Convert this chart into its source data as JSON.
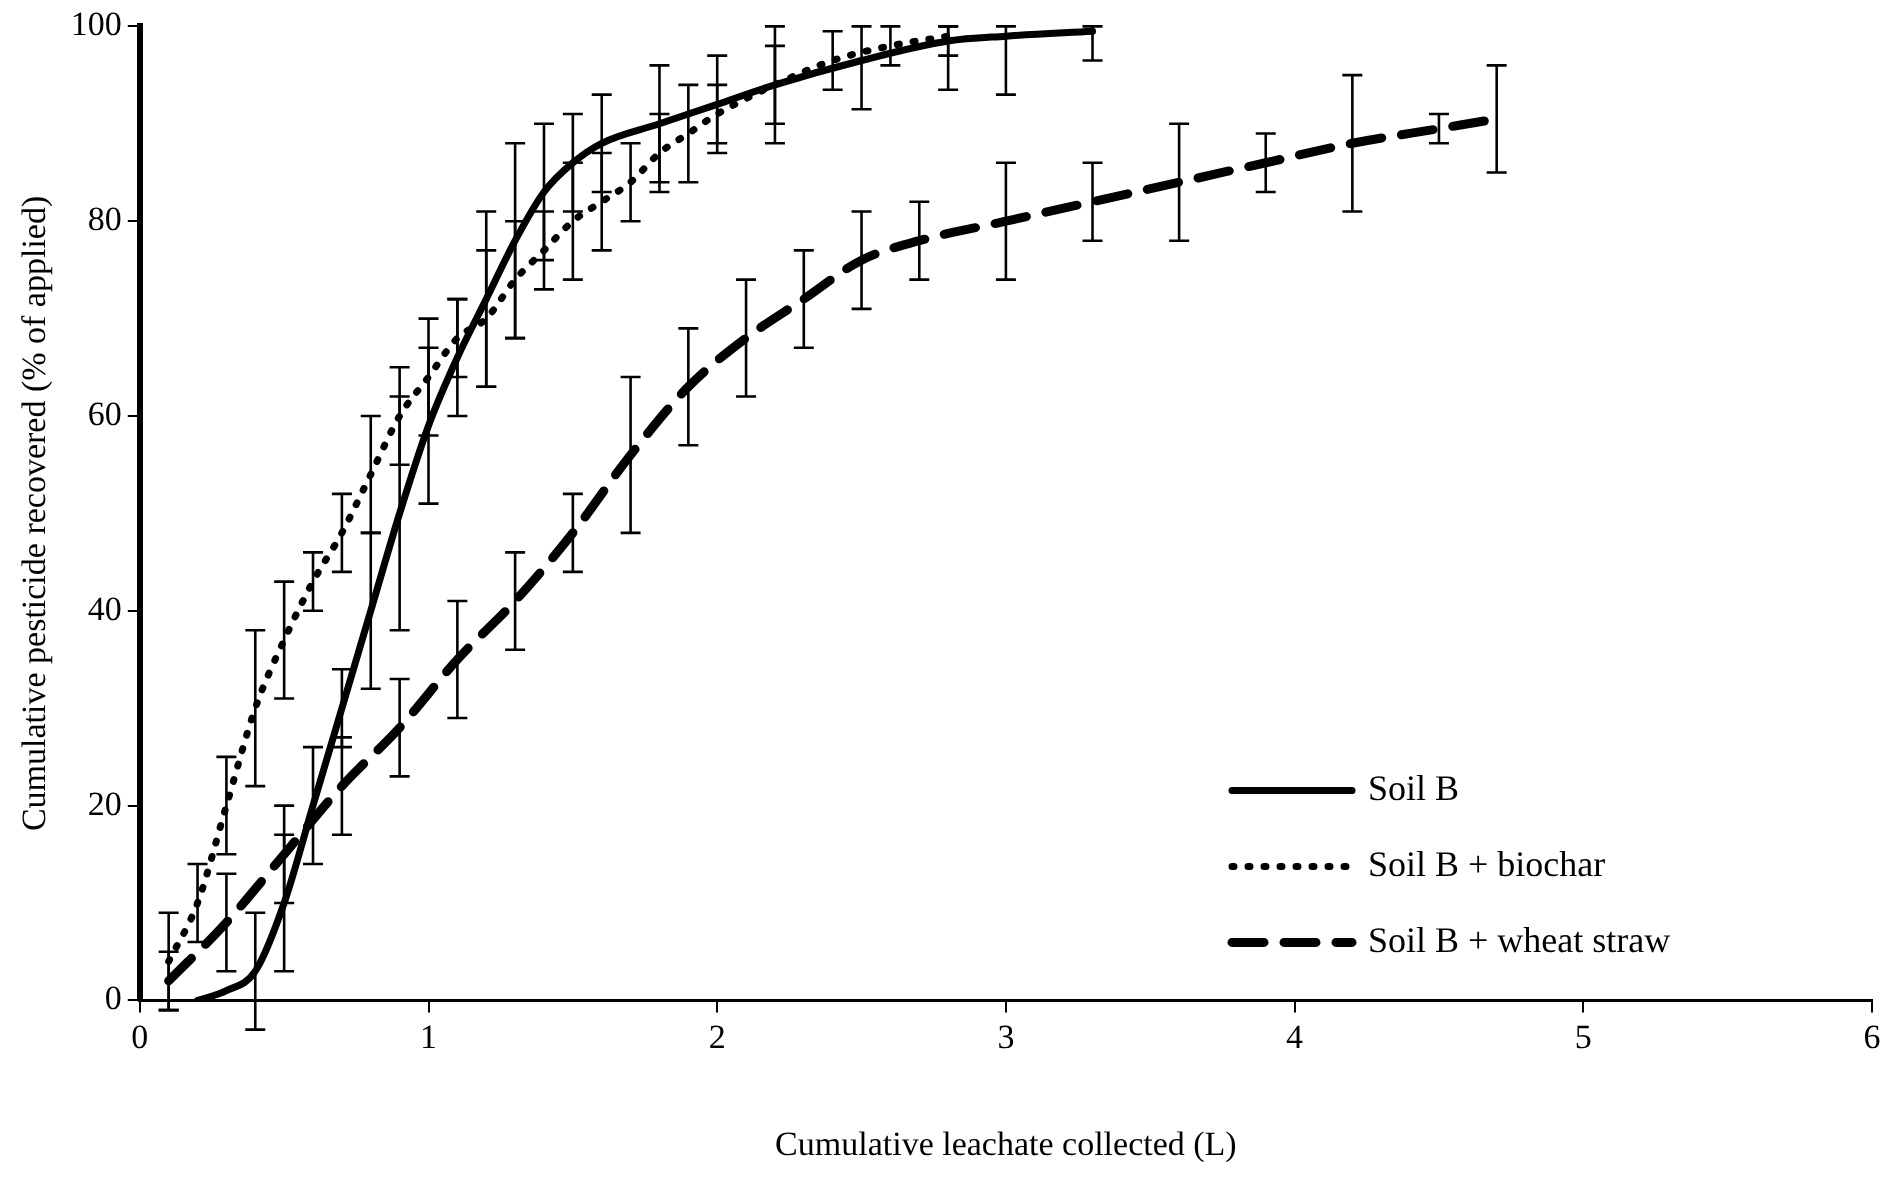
{
  "chart_data": {
    "type": "line",
    "xlabel": "Cumulative leachate collected (L)",
    "ylabel": "Cumulative pesticide recovered (% of applied)",
    "xlim": [
      0,
      6
    ],
    "xticks": [
      0,
      1,
      2,
      3,
      4,
      5,
      6
    ],
    "ylim": [
      0,
      100
    ],
    "yticks": [
      0,
      20,
      40,
      60,
      80,
      100
    ],
    "grid": false,
    "legend": "bottom right",
    "marker": "none",
    "series": [
      {
        "name": "Soil B",
        "color": "#000000",
        "line_style": "solid",
        "x": [
          0.2,
          0.3,
          0.4,
          0.5,
          0.6,
          0.7,
          0.8,
          0.9,
          1.0,
          1.1,
          1.2,
          1.3,
          1.4,
          1.5,
          1.6,
          1.8,
          2.0,
          2.2,
          2.5,
          2.8,
          3.0,
          3.3
        ],
        "values": [
          0,
          1,
          3,
          10,
          20,
          30,
          40,
          50,
          59,
          66,
          72,
          78,
          83,
          86,
          88,
          90,
          92,
          94,
          96.5,
          98.5,
          99,
          99.5
        ],
        "errors": [
          null,
          null,
          6,
          7,
          6,
          4,
          8,
          12,
          8,
          6,
          9,
          10,
          7,
          5,
          5,
          6,
          5,
          6,
          [
            91.5,
            100
          ],
          [
            93.5,
            100
          ],
          [
            93,
            100
          ],
          [
            96.5,
            100
          ]
        ]
      },
      {
        "name": "Soil B + biochar",
        "color": "#000000",
        "line_style": "dotted",
        "x": [
          0.1,
          0.2,
          0.3,
          0.4,
          0.5,
          0.6,
          0.7,
          0.8,
          0.9,
          1.0,
          1.1,
          1.2,
          1.3,
          1.4,
          1.5,
          1.6,
          1.7,
          1.8,
          1.9,
          2.0,
          2.2,
          2.4,
          2.6,
          2.8
        ],
        "values": [
          4,
          10,
          20,
          30,
          37,
          43,
          48,
          54,
          60,
          64,
          68,
          70,
          74,
          77,
          80,
          82,
          84,
          87,
          89,
          91,
          94,
          96.5,
          98,
          99
        ],
        "errors": [
          5,
          4,
          5,
          8,
          6,
          3,
          4,
          6,
          5,
          6,
          4,
          7,
          6,
          4,
          6,
          5,
          4,
          4,
          5,
          3,
          4,
          3,
          2,
          [
            97,
            100
          ]
        ]
      },
      {
        "name": "Soil B + wheat straw",
        "color": "#000000",
        "line_style": "dashed",
        "x": [
          0.1,
          0.3,
          0.5,
          0.7,
          0.9,
          1.1,
          1.3,
          1.5,
          1.7,
          1.9,
          2.1,
          2.3,
          2.5,
          2.7,
          3.0,
          3.3,
          3.6,
          3.9,
          4.2,
          4.5,
          4.7
        ],
        "values": [
          2,
          8,
          15,
          22,
          28,
          35,
          41,
          48,
          56,
          63,
          68,
          72,
          76,
          78,
          80,
          82,
          84,
          86,
          88,
          89.5,
          90.5
        ],
        "errors": [
          3,
          5,
          5,
          5,
          5,
          6,
          5,
          4,
          8,
          6,
          6,
          5,
          5,
          4,
          6,
          4,
          6,
          3,
          7,
          1.5,
          5.5
        ]
      }
    ]
  }
}
